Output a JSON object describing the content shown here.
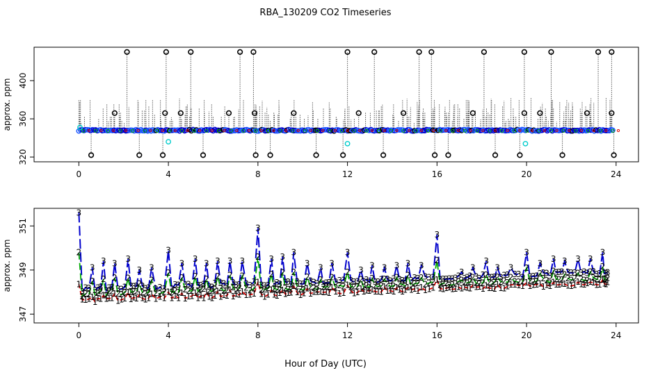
{
  "title": "RBA_130209  CO2 Timeseries",
  "xlabel": "Hour of Day (UTC)",
  "chart_data": [
    {
      "type": "scatter",
      "panel": "top",
      "ylabel": "approx. ppm",
      "xlim": [
        -2,
        25
      ],
      "ylim": [
        315,
        435
      ],
      "x_ticks": [
        0,
        4,
        8,
        12,
        16,
        20,
        24
      ],
      "y_ticks": [
        320,
        360,
        400
      ],
      "baseline": {
        "from_hour": 0,
        "to_hour": 23.9,
        "value": 348
      },
      "spikes_high": [
        {
          "x": 2.15,
          "y": 430
        },
        {
          "x": 3.9,
          "y": 430
        },
        {
          "x": 5.0,
          "y": 430
        },
        {
          "x": 7.2,
          "y": 430
        },
        {
          "x": 7.8,
          "y": 430
        },
        {
          "x": 12.0,
          "y": 430
        },
        {
          "x": 13.2,
          "y": 430
        },
        {
          "x": 15.2,
          "y": 430
        },
        {
          "x": 15.75,
          "y": 430
        },
        {
          "x": 18.1,
          "y": 430
        },
        {
          "x": 19.9,
          "y": 430
        },
        {
          "x": 21.1,
          "y": 430
        },
        {
          "x": 23.2,
          "y": 430
        },
        {
          "x": 23.8,
          "y": 430
        }
      ],
      "spikes_mid": [
        {
          "x": 1.6,
          "y": 366
        },
        {
          "x": 3.85,
          "y": 366
        },
        {
          "x": 4.55,
          "y": 366
        },
        {
          "x": 6.7,
          "y": 366
        },
        {
          "x": 7.85,
          "y": 366
        },
        {
          "x": 9.6,
          "y": 366
        },
        {
          "x": 12.5,
          "y": 366
        },
        {
          "x": 14.5,
          "y": 366
        },
        {
          "x": 17.6,
          "y": 366
        },
        {
          "x": 19.9,
          "y": 366
        },
        {
          "x": 20.6,
          "y": 366
        },
        {
          "x": 22.7,
          "y": 366
        },
        {
          "x": 23.8,
          "y": 366
        }
      ],
      "spikes_low": [
        {
          "x": 0.55,
          "y": 322
        },
        {
          "x": 2.7,
          "y": 322
        },
        {
          "x": 3.75,
          "y": 322
        },
        {
          "x": 5.55,
          "y": 322
        },
        {
          "x": 7.9,
          "y": 322
        },
        {
          "x": 8.55,
          "y": 322
        },
        {
          "x": 10.6,
          "y": 322
        },
        {
          "x": 11.8,
          "y": 322
        },
        {
          "x": 13.6,
          "y": 322
        },
        {
          "x": 15.9,
          "y": 322
        },
        {
          "x": 16.5,
          "y": 322
        },
        {
          "x": 18.6,
          "y": 322
        },
        {
          "x": 19.7,
          "y": 322
        },
        {
          "x": 21.6,
          "y": 322
        },
        {
          "x": 23.9,
          "y": 322
        }
      ],
      "cyan_points": [
        {
          "x": 0.05,
          "y": 351
        },
        {
          "x": 4.0,
          "y": 336
        },
        {
          "x": 12.0,
          "y": 334
        },
        {
          "x": 19.95,
          "y": 334
        }
      ]
    },
    {
      "type": "line",
      "panel": "bottom",
      "ylabel": "approx. ppm",
      "xlim": [
        -2,
        25
      ],
      "ylim": [
        346.6,
        351.8
      ],
      "x_ticks": [
        0,
        4,
        8,
        12,
        16,
        20,
        24
      ],
      "y_ticks": [
        347,
        349,
        351
      ],
      "series": [
        {
          "name": "1",
          "color": "#dd0000",
          "label": "1",
          "base_start": 347.6,
          "base_end": 348.4
        },
        {
          "name": "2",
          "color": "#00aa00",
          "label": "2",
          "base_start": 347.9,
          "base_end": 348.6
        },
        {
          "name": "3",
          "color": "#0000cc",
          "label": "3",
          "base_start": 348.1,
          "base_end": 348.9
        }
      ],
      "series3_peaks": [
        {
          "x": 0.0,
          "y": 351.6
        },
        {
          "x": 0.6,
          "y": 349.1
        },
        {
          "x": 1.1,
          "y": 349.4
        },
        {
          "x": 1.6,
          "y": 349.3
        },
        {
          "x": 2.2,
          "y": 349.5
        },
        {
          "x": 2.7,
          "y": 349.0
        },
        {
          "x": 3.25,
          "y": 349.1
        },
        {
          "x": 4.0,
          "y": 349.9
        },
        {
          "x": 4.6,
          "y": 349.3
        },
        {
          "x": 5.2,
          "y": 349.5
        },
        {
          "x": 5.7,
          "y": 349.3
        },
        {
          "x": 6.2,
          "y": 349.4
        },
        {
          "x": 6.75,
          "y": 349.4
        },
        {
          "x": 7.3,
          "y": 349.4
        },
        {
          "x": 8.0,
          "y": 350.9
        },
        {
          "x": 8.6,
          "y": 349.5
        },
        {
          "x": 9.1,
          "y": 349.6
        },
        {
          "x": 9.6,
          "y": 349.8
        },
        {
          "x": 10.2,
          "y": 349.3
        },
        {
          "x": 10.8,
          "y": 349.1
        },
        {
          "x": 11.3,
          "y": 349.3
        },
        {
          "x": 12.0,
          "y": 349.8
        },
        {
          "x": 12.6,
          "y": 349.0
        },
        {
          "x": 13.1,
          "y": 349.2
        },
        {
          "x": 13.65,
          "y": 349.1
        },
        {
          "x": 14.2,
          "y": 349.2
        },
        {
          "x": 14.7,
          "y": 349.3
        },
        {
          "x": 15.3,
          "y": 349.2
        },
        {
          "x": 16.0,
          "y": 350.6
        },
        {
          "x": 16.55,
          "y": 348.6
        },
        {
          "x": 17.1,
          "y": 348.9
        },
        {
          "x": 17.6,
          "y": 349.1
        },
        {
          "x": 18.2,
          "y": 349.4
        },
        {
          "x": 18.7,
          "y": 349.1
        },
        {
          "x": 19.3,
          "y": 349.1
        },
        {
          "x": 20.0,
          "y": 349.8
        },
        {
          "x": 20.6,
          "y": 349.3
        },
        {
          "x": 21.2,
          "y": 349.5
        },
        {
          "x": 21.7,
          "y": 349.4
        },
        {
          "x": 22.3,
          "y": 349.5
        },
        {
          "x": 22.85,
          "y": 349.5
        },
        {
          "x": 23.4,
          "y": 349.8
        }
      ]
    }
  ]
}
